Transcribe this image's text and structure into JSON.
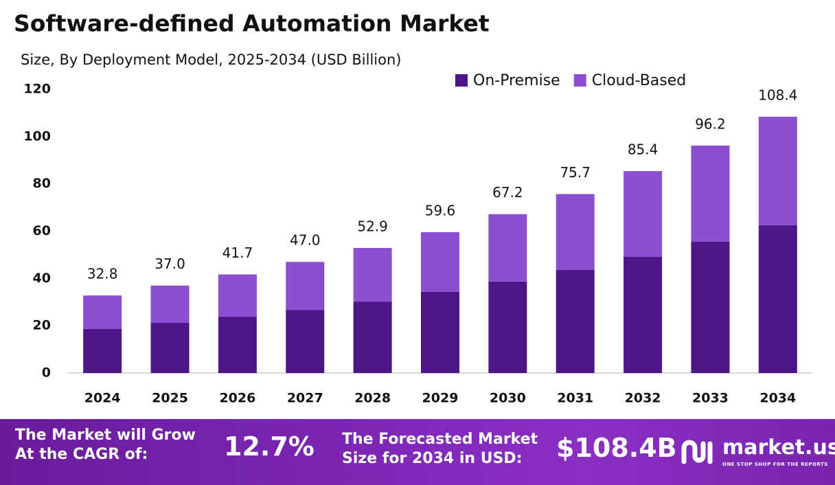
{
  "chart_data": {
    "type": "stacked-bar",
    "title": "Software-defined Automation Market",
    "subtitle": "Size, By Deployment Model, 2025-2034 (USD Billion)",
    "categories": [
      "2024",
      "2025",
      "2026",
      "2027",
      "2028",
      "2029",
      "2030",
      "2031",
      "2032",
      "2033",
      "2034"
    ],
    "series": [
      {
        "name": "On-Premise",
        "color": "#4e1586",
        "values": [
          18.6,
          21.2,
          23.8,
          26.7,
          30.2,
          34.3,
          38.7,
          43.6,
          49.1,
          55.5,
          62.5
        ]
      },
      {
        "name": "Cloud-Based",
        "color": "#8c4fd1",
        "values": [
          14.2,
          15.8,
          17.9,
          20.3,
          22.7,
          25.3,
          28.5,
          32.1,
          36.3,
          40.7,
          45.9
        ]
      }
    ],
    "totals": [
      32.8,
      37.0,
      41.7,
      47.0,
      52.9,
      59.6,
      67.2,
      75.7,
      85.4,
      96.2,
      108.4
    ],
    "total_labels": [
      "32.8",
      "37.0",
      "41.7",
      "47.0",
      "52.9",
      "59.6",
      "67.2",
      "75.7",
      "85.4",
      "96.2",
      "108.4"
    ],
    "ylim": [
      0,
      120
    ],
    "yticks": [
      0,
      20,
      40,
      60,
      80,
      100,
      120
    ],
    "grid": false,
    "legend": "top-right"
  },
  "banner": {
    "cagr_text": [
      "The Market will Grow",
      "At the CAGR of:"
    ],
    "cagr_value": "12.7%",
    "forecast_text": [
      "The Forecasted Market",
      "Size for 2034 in USD:"
    ],
    "forecast_value": "$108.4B",
    "brand": "market.us",
    "tagline": "ONE STOP SHOP FOR THE REPORTS"
  }
}
